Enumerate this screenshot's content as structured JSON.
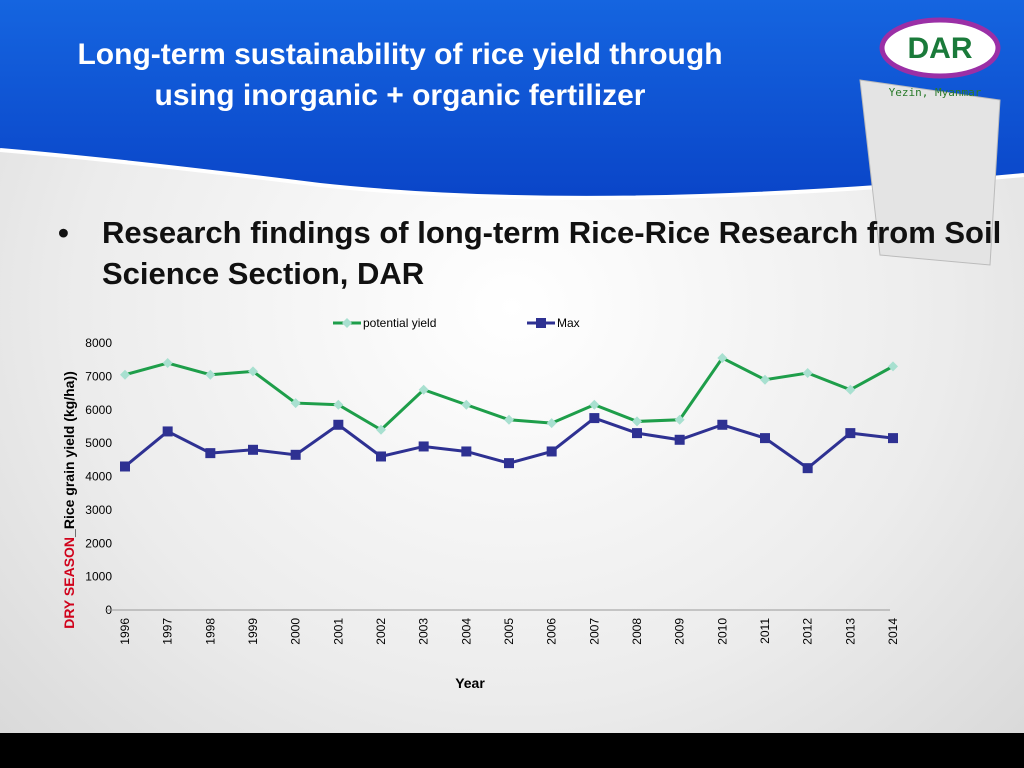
{
  "header": {
    "title": "Long-term sustainability of rice yield through using inorganic + organic fertilizer"
  },
  "logo": {
    "text": "DAR",
    "location": "Yezin, Myanmar"
  },
  "bullet": "Research findings of long-term Rice-Rice Research from Soil Science Section, DAR",
  "chart_data": {
    "type": "line",
    "categories": [
      "1996",
      "1997",
      "1998",
      "1999",
      "2000",
      "2001",
      "2002",
      "2003",
      "2004",
      "2005",
      "2006",
      "2007",
      "2008",
      "2009",
      "2010",
      "2011",
      "2012",
      "2013",
      "2014"
    ],
    "series": [
      {
        "name": "potential yield",
        "color": "#1e9e4a",
        "marker_color": "#a8e0d0",
        "marker": "diamond",
        "values": [
          7050,
          7400,
          7050,
          7150,
          6200,
          6150,
          5400,
          6600,
          6150,
          5700,
          5600,
          6150,
          5650,
          5700,
          7550,
          6900,
          7100,
          6600,
          7300
        ]
      },
      {
        "name": "Max",
        "color": "#2e3192",
        "marker_color": "#2e3192",
        "marker": "square",
        "values": [
          4300,
          5350,
          4700,
          4800,
          4650,
          5550,
          4600,
          4900,
          4750,
          4400,
          4750,
          5750,
          5300,
          5100,
          5550,
          5150,
          4250,
          5300,
          5150
        ]
      }
    ],
    "ylim": [
      0,
      8000
    ],
    "yticks": [
      0,
      1000,
      2000,
      3000,
      4000,
      5000,
      6000,
      7000,
      8000
    ],
    "xlabel": "Year",
    "ylabel_prefix": "DRY SEASON",
    "ylabel_prefix_color": "#d0021b",
    "ylabel": "_Rice grain yield (kg/ha))",
    "legend": "top"
  }
}
